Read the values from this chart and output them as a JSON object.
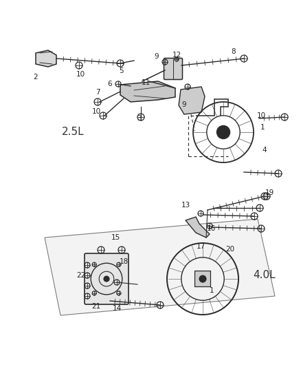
{
  "bg_color": "#ffffff",
  "fig_width": 4.38,
  "fig_height": 5.33,
  "dpi": 100,
  "label_2_5L": "2.5L",
  "label_4_0L": "4.0L",
  "line_color": "#2a2a2a",
  "label_fontsize": 7.5,
  "section_fontsize": 11
}
